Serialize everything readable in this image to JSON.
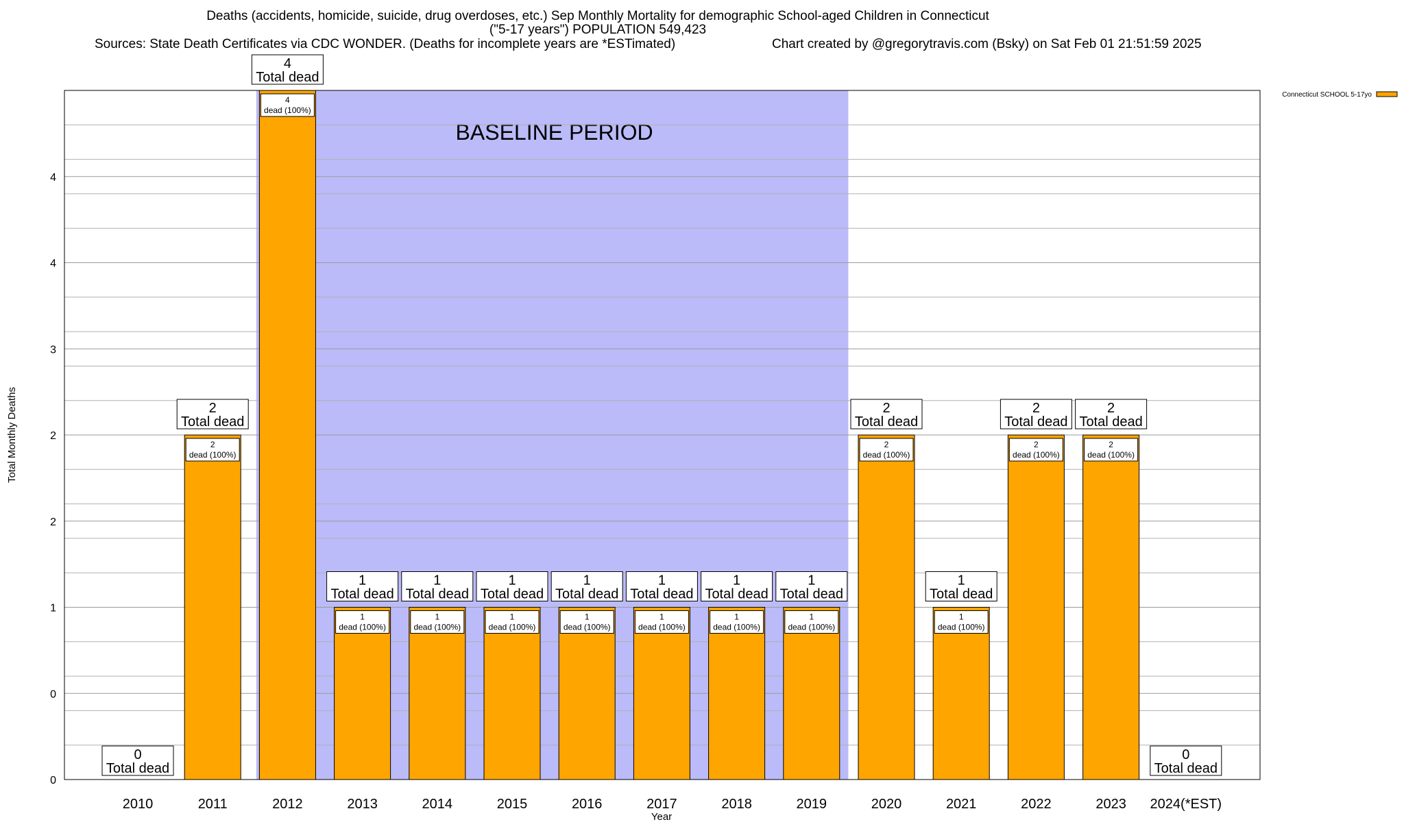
{
  "header": {
    "title_line1": "Deaths (accidents, homicide, suicide, drug overdoses, etc.) Sep Monthly Mortality for demographic School-aged Children in Connecticut",
    "title_line2": "(\"5-17 years\") POPULATION 549,423",
    "sources": "Sources: State Death Certificates via CDC WONDER. (Deaths for incomplete years are *ESTimated)",
    "credit": "Chart created by @gregorytravis.com (Bsky) on Sat Feb 01 21:51:59 2025"
  },
  "chart_data": {
    "type": "bar",
    "xlabel": "Year",
    "ylabel": "Total Monthly Deaths",
    "ylim": [
      0,
      4
    ],
    "y_tick_labels": [
      "0",
      "0",
      "1",
      "2",
      "2",
      "3",
      "4",
      "4"
    ],
    "grid": true,
    "legend": {
      "placement": "top-right",
      "entry": "Connecticut SCHOOL 5-17yo"
    },
    "colors": {
      "bar": "#FFA500",
      "baseline_band": "#BBBBF9",
      "grid": "#B0B0B0"
    },
    "baseline_label": "BASELINE PERIOD",
    "baseline_range": [
      "2012",
      "2019"
    ],
    "categories": [
      "2010",
      "2011",
      "2012",
      "2013",
      "2014",
      "2015",
      "2016",
      "2017",
      "2018",
      "2019",
      "2020",
      "2021",
      "2022",
      "2023",
      "2024(*EST)"
    ],
    "series": [
      {
        "name": "Connecticut SCHOOL 5-17yo",
        "values": [
          0,
          2,
          4,
          1,
          1,
          1,
          1,
          1,
          1,
          1,
          2,
          1,
          2,
          2,
          0
        ]
      }
    ],
    "total_label": "Total dead",
    "inner_label_suffix": "dead (100%)"
  }
}
